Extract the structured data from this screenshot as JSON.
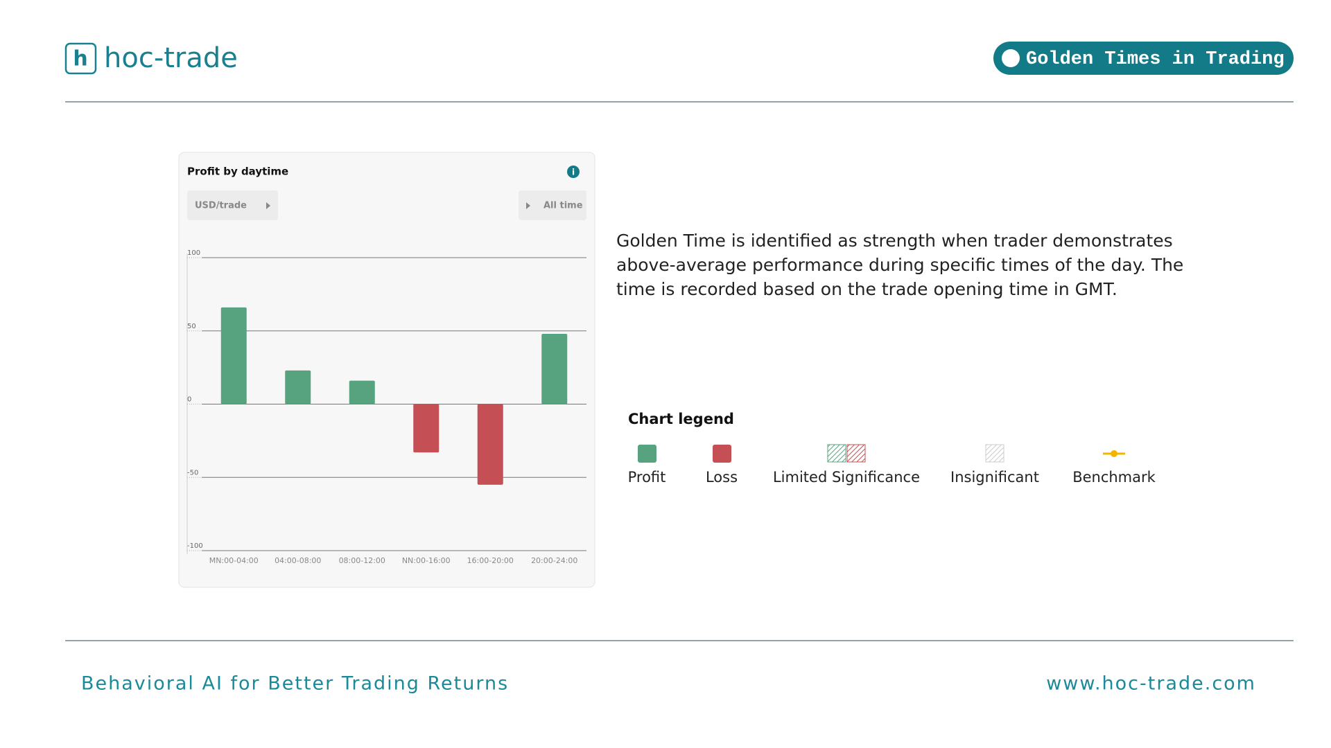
{
  "header": {
    "brand": "hoc-trade",
    "badge": "Golden Times in Trading"
  },
  "chart_data": {
    "type": "bar",
    "title": "Profit by daytime",
    "unit_selector": "USD/trade",
    "period_selector": "All time",
    "categories": [
      "MN:00-04:00",
      "04:00-08:00",
      "08:00-12:00",
      "NN:00-16:00",
      "16:00-20:00",
      "20:00-24:00"
    ],
    "values": [
      66,
      23,
      16,
      -33,
      -55,
      48
    ],
    "colors": [
      "#57a37f",
      "#57a37f",
      "#57a37f",
      "#c45055",
      "#c45055",
      "#57a37f"
    ],
    "ylim": [
      -100,
      100
    ],
    "yticks": [
      100,
      50,
      0,
      -50,
      -100
    ],
    "grid": true
  },
  "description": [
    "Golden Time is identified as strength when trader demonstrates",
    "above-average performance during specific times of the day. The",
    "time is recorded based on the trade opening time in GMT."
  ],
  "legend": {
    "title": "Chart legend",
    "items": [
      "Profit",
      "Loss",
      "Limited Significance",
      "Insignificant",
      "Benchmark"
    ]
  },
  "footer": {
    "tagline": "Behavioral AI for Better Trading Returns",
    "url": "www.hoc-trade.com"
  }
}
